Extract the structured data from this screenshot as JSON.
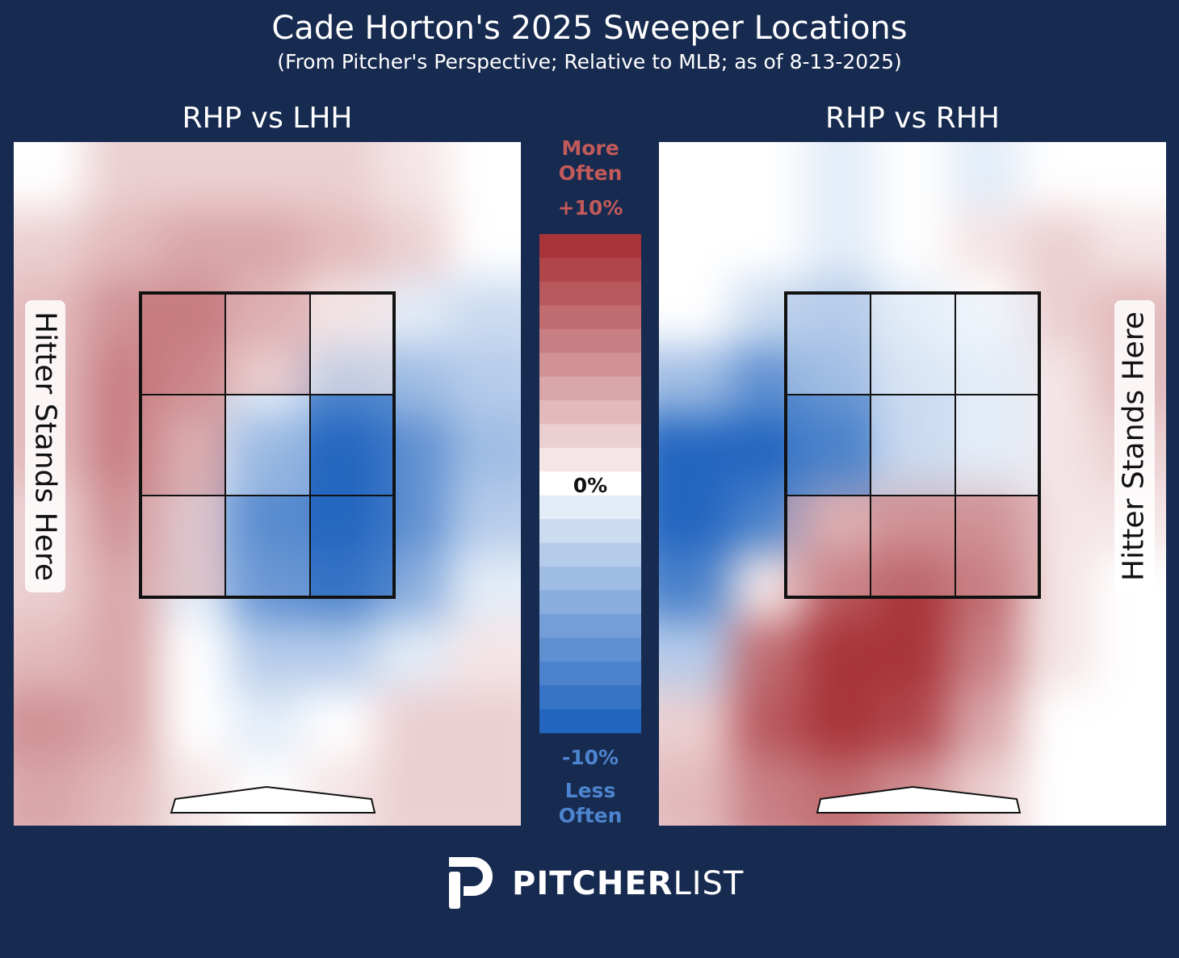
{
  "title": "Cade Horton's 2025 Sweeper Locations",
  "subtitle": "(From Pitcher's Perspective; Relative to MLB; as of 8-13-2025)",
  "colors": {
    "background": "#172a4f",
    "more_often": "#a8343a",
    "neutral": "#ffffff",
    "less_often": "#2366c0"
  },
  "chart_data": {
    "type": "heatmap",
    "value_unit": "percentage-point difference vs MLB",
    "colorbar": {
      "more_label": "More Often",
      "less_label": "Less Often",
      "top_tick": "+10%",
      "zero_tick": "0%",
      "bottom_tick": "-10%",
      "range": [
        -10,
        10
      ],
      "steps": 21
    },
    "panels": [
      {
        "title": "RHP vs LHH",
        "side_label": "Hitter Stands Here",
        "side_label_position": "left",
        "zone_grid": "3x3",
        "zone_values": [
          [
            7,
            4,
            1
          ],
          [
            6,
            -2,
            -10
          ],
          [
            4,
            -6,
            -10
          ]
        ],
        "grid_values": [
          [
            0,
            2,
            2,
            2,
            2,
            1,
            0
          ],
          [
            2,
            3,
            4,
            4,
            3,
            2,
            0
          ],
          [
            3,
            5,
            5,
            3,
            1,
            -1,
            -2
          ],
          [
            3,
            6,
            4,
            0,
            -5,
            -4,
            -3
          ],
          [
            3,
            6,
            1,
            -7,
            -10,
            -7,
            -4
          ],
          [
            2,
            5,
            -1,
            -9,
            -10,
            -7,
            -3
          ],
          [
            2,
            4,
            -1,
            -7,
            -8,
            -5,
            -1
          ],
          [
            3,
            4,
            0,
            -3,
            -3,
            -1,
            1
          ],
          [
            5,
            4,
            0,
            -1,
            0,
            2,
            2
          ],
          [
            4,
            3,
            1,
            0,
            1,
            2,
            2
          ]
        ]
      },
      {
        "title": "RHP vs RHH",
        "side_label": "Hitter Stands Here",
        "side_label_position": "right",
        "zone_grid": "3x3",
        "zone_values": [
          [
            -3,
            -1,
            -1
          ],
          [
            -8,
            -2,
            -1
          ],
          [
            4,
            5,
            5
          ]
        ],
        "grid_values": [
          [
            0,
            0,
            -1,
            0,
            -1,
            0,
            0
          ],
          [
            0,
            0,
            -1,
            0,
            1,
            2,
            1
          ],
          [
            0,
            -2,
            -3,
            -1,
            0,
            2,
            3
          ],
          [
            -4,
            -7,
            -5,
            -2,
            -1,
            1,
            3
          ],
          [
            -10,
            -10,
            -8,
            -2,
            -1,
            1,
            2
          ],
          [
            -10,
            -8,
            3,
            5,
            5,
            1,
            1
          ],
          [
            -8,
            1,
            8,
            10,
            7,
            1,
            0
          ],
          [
            -3,
            7,
            10,
            10,
            6,
            1,
            0
          ],
          [
            2,
            8,
            10,
            9,
            4,
            0,
            0
          ],
          [
            3,
            6,
            7,
            5,
            2,
            0,
            0
          ]
        ]
      }
    ]
  },
  "logo": {
    "bold": "PITCHER",
    "light": "LIST"
  }
}
